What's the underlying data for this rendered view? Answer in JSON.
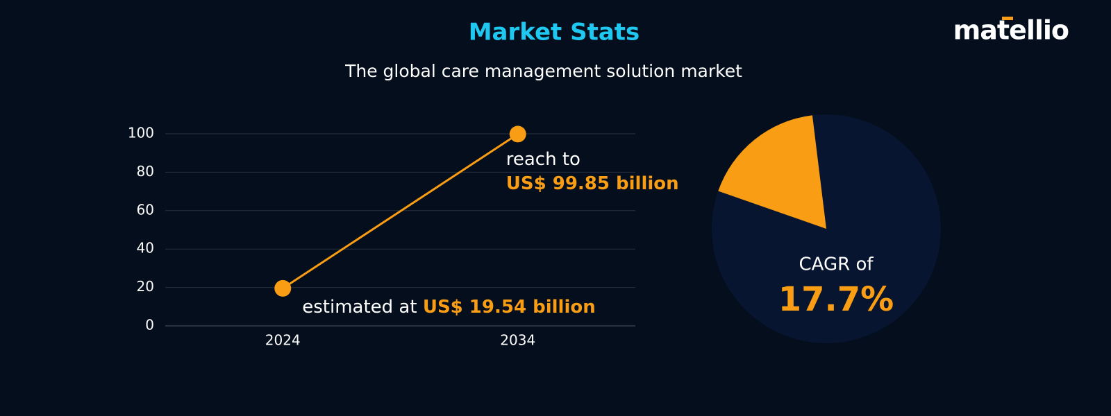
{
  "header": {
    "title": "Market Stats",
    "subtitle": "The global care management solution market",
    "logo": "matellio"
  },
  "chart_data": [
    {
      "type": "line",
      "categories": [
        "2024",
        "2034"
      ],
      "values": [
        19.54,
        99.85
      ],
      "value_labels": [
        "US$ 19.54 billion",
        "US$ 99.85 billion"
      ],
      "annotations": [
        "estimated at",
        "reach to"
      ],
      "color": "#f99d14",
      "ylim": [
        0,
        100
      ],
      "yticks": [
        0,
        20,
        40,
        60,
        80,
        100
      ],
      "grid": true
    },
    {
      "type": "pie",
      "values": [
        17.7
      ],
      "value_labels": [
        "17.7%"
      ],
      "annotations": [
        "CAGR of"
      ],
      "color": "#f99d14"
    }
  ]
}
